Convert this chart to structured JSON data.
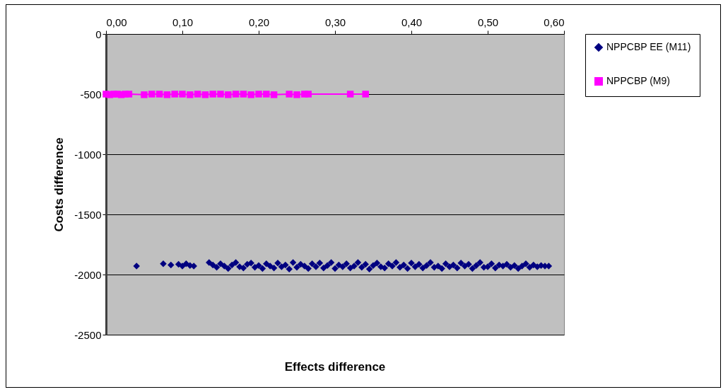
{
  "chart_data": {
    "type": "scatter",
    "xlabel": "Effects difference",
    "ylabel": "Costs difference",
    "xlim": [
      0,
      0.6
    ],
    "xticks": [
      {
        "value": 0,
        "label": "0,00"
      },
      {
        "value": 0.1,
        "label": "0,10"
      },
      {
        "value": 0.2,
        "label": "0,20"
      },
      {
        "value": 0.3,
        "label": "0,30"
      },
      {
        "value": 0.4,
        "label": "0,40"
      },
      {
        "value": 0.5,
        "label": "0,50"
      },
      {
        "value": 0.6,
        "label": "0,60"
      }
    ],
    "ylim": [
      -2500,
      0
    ],
    "yticks": [
      -2500,
      -2000,
      -1500,
      -1000,
      -500,
      0
    ],
    "grid": "y",
    "legend": "right",
    "series": [
      {
        "name": "NPPCBP EE (M11)",
        "marker": "diamond",
        "color": "#000080",
        "x": [
          0.04,
          0.075,
          0.085,
          0.095,
          0.1,
          0.105,
          0.11,
          0.115,
          0.135,
          0.14,
          0.145,
          0.15,
          0.155,
          0.16,
          0.165,
          0.17,
          0.175,
          0.18,
          0.185,
          0.19,
          0.195,
          0.2,
          0.205,
          0.21,
          0.215,
          0.22,
          0.225,
          0.23,
          0.235,
          0.24,
          0.245,
          0.25,
          0.255,
          0.26,
          0.265,
          0.27,
          0.275,
          0.28,
          0.285,
          0.29,
          0.295,
          0.3,
          0.305,
          0.31,
          0.315,
          0.32,
          0.325,
          0.33,
          0.335,
          0.34,
          0.345,
          0.35,
          0.355,
          0.36,
          0.365,
          0.37,
          0.375,
          0.38,
          0.385,
          0.39,
          0.395,
          0.4,
          0.405,
          0.41,
          0.415,
          0.42,
          0.425,
          0.43,
          0.435,
          0.44,
          0.445,
          0.45,
          0.455,
          0.46,
          0.465,
          0.47,
          0.475,
          0.48,
          0.485,
          0.49,
          0.495,
          0.5,
          0.505,
          0.51,
          0.515,
          0.52,
          0.525,
          0.53,
          0.535,
          0.54,
          0.545,
          0.55,
          0.555,
          0.56,
          0.565,
          0.57,
          0.575,
          0.58
        ],
        "values": [
          -1930,
          -1910,
          -1920,
          -1915,
          -1930,
          -1910,
          -1925,
          -1930,
          -1900,
          -1920,
          -1940,
          -1910,
          -1930,
          -1950,
          -1920,
          -1900,
          -1935,
          -1945,
          -1915,
          -1905,
          -1940,
          -1925,
          -1950,
          -1910,
          -1930,
          -1945,
          -1905,
          -1935,
          -1920,
          -1955,
          -1900,
          -1940,
          -1915,
          -1930,
          -1950,
          -1910,
          -1935,
          -1905,
          -1945,
          -1925,
          -1900,
          -1950,
          -1920,
          -1935,
          -1910,
          -1945,
          -1930,
          -1900,
          -1940,
          -1915,
          -1955,
          -1925,
          -1905,
          -1935,
          -1945,
          -1910,
          -1930,
          -1900,
          -1940,
          -1920,
          -1950,
          -1905,
          -1935,
          -1915,
          -1945,
          -1925,
          -1900,
          -1940,
          -1930,
          -1950,
          -1910,
          -1935,
          -1920,
          -1945,
          -1905,
          -1930,
          -1915,
          -1950,
          -1925,
          -1900,
          -1940,
          -1935,
          -1910,
          -1945,
          -1920,
          -1930,
          -1915,
          -1940,
          -1925,
          -1950,
          -1930,
          -1910,
          -1940,
          -1920,
          -1935,
          -1925,
          -1930,
          -1930
        ]
      },
      {
        "name": "NPPCBP (M9)",
        "type": "line",
        "marker": "square",
        "line_style": "solid",
        "color": "#ff00ff",
        "x": [
          0,
          0.005,
          0.01,
          0.015,
          0.02,
          0.025,
          0.03,
          0.05,
          0.06,
          0.07,
          0.08,
          0.09,
          0.1,
          0.11,
          0.12,
          0.13,
          0.14,
          0.15,
          0.16,
          0.17,
          0.18,
          0.19,
          0.2,
          0.21,
          0.22,
          0.24,
          0.25,
          0.26,
          0.265,
          0.32,
          0.34
        ],
        "values": [
          -500,
          -505,
          -500,
          -500,
          -505,
          -500,
          -500,
          -505,
          -500,
          -500,
          -505,
          -500,
          -500,
          -505,
          -500,
          -505,
          -500,
          -500,
          -505,
          -500,
          -500,
          -505,
          -500,
          -500,
          -505,
          -500,
          -505,
          -500,
          -500,
          -500,
          -500
        ]
      }
    ]
  }
}
